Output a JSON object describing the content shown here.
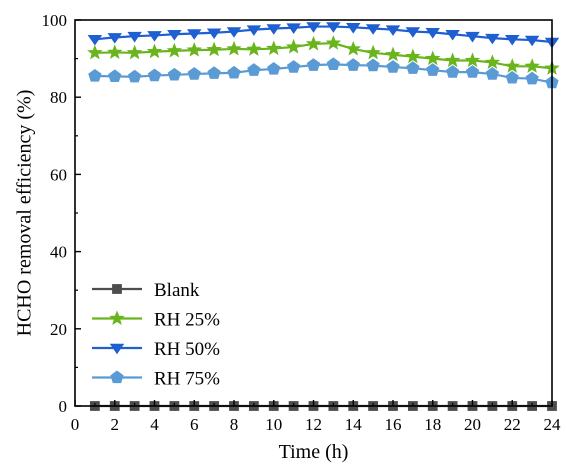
{
  "chart_data": {
    "type": "line",
    "xlabel": "Time (h)",
    "ylabel": "HCHO removal efficiency (%)",
    "xlim": [
      0,
      24
    ],
    "ylim": [
      0,
      100
    ],
    "xticks": [
      0,
      2,
      4,
      6,
      8,
      10,
      12,
      14,
      16,
      18,
      20,
      22,
      24
    ],
    "yticks": [
      0,
      20,
      40,
      60,
      80,
      100
    ],
    "legend_position": "bottom-left",
    "grid": false,
    "x": [
      1,
      2,
      3,
      4,
      5,
      6,
      7,
      8,
      9,
      10,
      11,
      12,
      13,
      14,
      15,
      16,
      17,
      18,
      19,
      20,
      21,
      22,
      23,
      24
    ],
    "series": [
      {
        "name": "Blank",
        "color": "#4d4d4d",
        "marker": "square",
        "values": [
          0,
          0,
          0,
          0,
          0,
          0,
          0,
          0,
          0,
          0,
          0,
          0,
          0,
          0,
          0,
          0,
          0,
          0,
          0,
          0,
          0,
          0,
          0,
          0
        ]
      },
      {
        "name": "RH 25%",
        "color": "#6ab41e",
        "marker": "star",
        "values": [
          91.5,
          91.6,
          91.5,
          91.8,
          92.0,
          92.2,
          92.3,
          92.5,
          92.4,
          92.6,
          93.0,
          93.8,
          94.0,
          92.5,
          91.5,
          91.0,
          90.5,
          90.0,
          89.5,
          89.5,
          89.0,
          88.0,
          88.0,
          87.5
        ]
      },
      {
        "name": "RH 50%",
        "color": "#1f5fd0",
        "marker": "triangle-down",
        "values": [
          95.0,
          95.5,
          95.8,
          96.0,
          96.3,
          96.5,
          96.7,
          97.0,
          97.5,
          97.8,
          98.0,
          98.3,
          98.3,
          98.1,
          97.8,
          97.5,
          97.0,
          96.8,
          96.3,
          95.8,
          95.3,
          95.0,
          94.8,
          94.3
        ]
      },
      {
        "name": "RH 75%",
        "color": "#5b9bd5",
        "marker": "pentagon",
        "values": [
          85.5,
          85.4,
          85.3,
          85.6,
          85.8,
          86.0,
          86.2,
          86.3,
          87.0,
          87.3,
          87.8,
          88.3,
          88.5,
          88.3,
          88.2,
          87.8,
          87.5,
          87.0,
          86.5,
          86.5,
          86.0,
          85.0,
          84.8,
          83.8
        ]
      }
    ]
  }
}
